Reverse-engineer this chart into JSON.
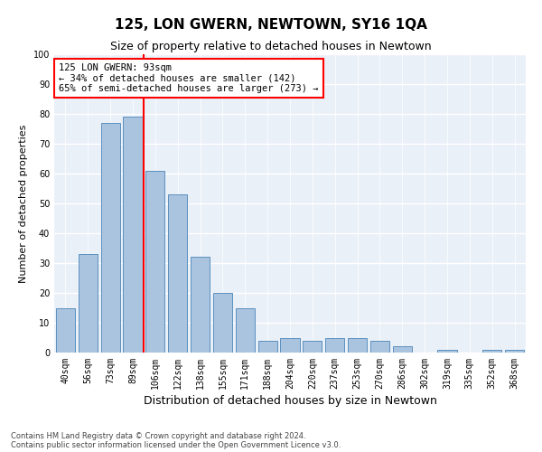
{
  "title": "125, LON GWERN, NEWTOWN, SY16 1QA",
  "subtitle": "Size of property relative to detached houses in Newtown",
  "xlabel": "Distribution of detached houses by size in Newtown",
  "ylabel": "Number of detached properties",
  "categories": [
    "40sqm",
    "56sqm",
    "73sqm",
    "89sqm",
    "106sqm",
    "122sqm",
    "138sqm",
    "155sqm",
    "171sqm",
    "188sqm",
    "204sqm",
    "220sqm",
    "237sqm",
    "253sqm",
    "270sqm",
    "286sqm",
    "302sqm",
    "319sqm",
    "335sqm",
    "352sqm",
    "368sqm"
  ],
  "values": [
    15,
    33,
    77,
    79,
    61,
    53,
    32,
    20,
    15,
    4,
    5,
    4,
    5,
    5,
    4,
    2,
    0,
    1,
    0,
    1,
    1
  ],
  "bar_color": "#aac4e0",
  "bar_edge_color": "#5a90bf",
  "red_line_x": 3.5,
  "annotation_text": "125 LON GWERN: 93sqm\n← 34% of detached houses are smaller (142)\n65% of semi-detached houses are larger (273) →",
  "annotation_box_color": "white",
  "annotation_box_edge_color": "red",
  "red_line_color": "red",
  "ylim": [
    0,
    100
  ],
  "yticks": [
    0,
    10,
    20,
    30,
    40,
    50,
    60,
    70,
    80,
    90,
    100
  ],
  "background_color": "#eaf0f8",
  "grid_color": "white",
  "footer1": "Contains HM Land Registry data © Crown copyright and database right 2024.",
  "footer2": "Contains public sector information licensed under the Open Government Licence v3.0.",
  "title_fontsize": 11,
  "subtitle_fontsize": 9,
  "xlabel_fontsize": 9,
  "ylabel_fontsize": 8,
  "tick_fontsize": 7,
  "annotation_fontsize": 7.5
}
